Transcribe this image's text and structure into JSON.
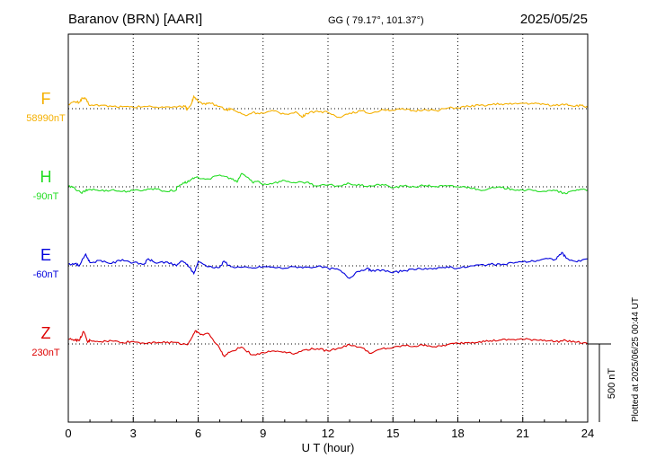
{
  "header": {
    "station": "Baranov (BRN)  [AARI]",
    "coords": "GG ( 79.17°, 101.37°)",
    "date": "2025/05/25"
  },
  "plotted_note": "Plotted at 2025/06/25 00:44 UT",
  "chart_data": {
    "type": "line",
    "xlabel": "U T (hour)",
    "xlim": [
      0,
      24
    ],
    "xticks": [
      0,
      3,
      6,
      9,
      12,
      15,
      18,
      21,
      24
    ],
    "scale_bar": {
      "label": "500 nT",
      "value": 500
    },
    "series": [
      {
        "name": "F",
        "baseline_label": "58990nT",
        "baseline": 58990,
        "color": "#f5b000",
        "points": [
          [
            0,
            29
          ],
          [
            0.3,
            43
          ],
          [
            0.5,
            40
          ],
          [
            0.65,
            68
          ],
          [
            0.8,
            62
          ],
          [
            1,
            20
          ],
          [
            1.5,
            22
          ],
          [
            2,
            15
          ],
          [
            2.5,
            12
          ],
          [
            3,
            8
          ],
          [
            3.5,
            15
          ],
          [
            4,
            10
          ],
          [
            4.5,
            12
          ],
          [
            5,
            9
          ],
          [
            5.4,
            14
          ],
          [
            5.5,
            -5
          ],
          [
            5.7,
            35
          ],
          [
            5.8,
            80
          ],
          [
            6,
            45
          ],
          [
            6.2,
            28
          ],
          [
            6.5,
            38
          ],
          [
            7,
            15
          ],
          [
            7.3,
            -10
          ],
          [
            7.5,
            0
          ],
          [
            7.8,
            -20
          ],
          [
            8.2,
            -45
          ],
          [
            8.5,
            -25
          ],
          [
            9,
            -30
          ],
          [
            9.5,
            -15
          ],
          [
            10,
            -35
          ],
          [
            10.5,
            -20
          ],
          [
            10.8,
            -55
          ],
          [
            11,
            -30
          ],
          [
            11.5,
            -15
          ],
          [
            12,
            -25
          ],
          [
            12.5,
            -55
          ],
          [
            13,
            -28
          ],
          [
            13.5,
            -15
          ],
          [
            14,
            -30
          ],
          [
            14.5,
            -5
          ],
          [
            15,
            -10
          ],
          [
            15.5,
            -5
          ],
          [
            16,
            -15
          ],
          [
            16.5,
            -5
          ],
          [
            17,
            -12
          ],
          [
            17.5,
            3
          ],
          [
            18,
            5
          ],
          [
            18.5,
            15
          ],
          [
            19,
            20
          ],
          [
            19.5,
            25
          ],
          [
            20,
            30
          ],
          [
            20.5,
            28
          ],
          [
            21,
            35
          ],
          [
            21.5,
            32
          ],
          [
            22,
            28
          ],
          [
            22.5,
            20
          ],
          [
            23,
            30
          ],
          [
            23.3,
            18
          ],
          [
            23.7,
            20
          ],
          [
            24,
            8
          ]
        ]
      },
      {
        "name": "H",
        "baseline_label": "-90nT",
        "baseline": -90,
        "color": "#22dd22",
        "points": [
          [
            0,
            4
          ],
          [
            0.3,
            -10
          ],
          [
            0.6,
            -40
          ],
          [
            0.8,
            -25
          ],
          [
            1,
            -15
          ],
          [
            1.5,
            -25
          ],
          [
            2,
            -20
          ],
          [
            2.5,
            -30
          ],
          [
            3,
            -25
          ],
          [
            3.5,
            -20
          ],
          [
            4,
            -10
          ],
          [
            4.5,
            -30
          ],
          [
            5,
            -20
          ],
          [
            5,
            -5
          ],
          [
            5.3,
            25
          ],
          [
            5.5,
            30
          ],
          [
            5.7,
            48
          ],
          [
            6,
            60
          ],
          [
            6.5,
            50
          ],
          [
            7,
            75
          ],
          [
            7.5,
            55
          ],
          [
            7.8,
            30
          ],
          [
            8,
            85
          ],
          [
            8.3,
            60
          ],
          [
            8.5,
            30
          ],
          [
            8.8,
            35
          ],
          [
            9,
            15
          ],
          [
            9.5,
            25
          ],
          [
            10,
            40
          ],
          [
            10.5,
            25
          ],
          [
            11,
            30
          ],
          [
            11.5,
            5
          ],
          [
            12,
            12
          ],
          [
            12.5,
            5
          ],
          [
            13,
            20
          ],
          [
            13.5,
            8
          ],
          [
            14,
            5
          ],
          [
            14.5,
            15
          ],
          [
            15,
            -5
          ],
          [
            15.5,
            5
          ],
          [
            16,
            0
          ],
          [
            16.5,
            8
          ],
          [
            17,
            2
          ],
          [
            17.5,
            5
          ],
          [
            18,
            0
          ],
          [
            18.5,
            -2
          ],
          [
            19,
            -20
          ],
          [
            19.5,
            -10
          ],
          [
            20,
            -5
          ],
          [
            20.5,
            -15
          ],
          [
            21,
            -20
          ],
          [
            21.5,
            -25
          ],
          [
            22,
            -28
          ],
          [
            22.5,
            -25
          ],
          [
            23,
            -45
          ],
          [
            23.3,
            -25
          ],
          [
            23.7,
            -15
          ],
          [
            24,
            -20
          ]
        ]
      },
      {
        "name": "E",
        "baseline_label": "-60nT",
        "baseline": -60,
        "color": "#0000dd",
        "points": [
          [
            0,
            10
          ],
          [
            0.3,
            15
          ],
          [
            0.5,
            0
          ],
          [
            0.8,
            75
          ],
          [
            1,
            20
          ],
          [
            1.5,
            35
          ],
          [
            2,
            15
          ],
          [
            2.5,
            40
          ],
          [
            3,
            20
          ],
          [
            3.5,
            10
          ],
          [
            3.7,
            45
          ],
          [
            4,
            20
          ],
          [
            4.5,
            25
          ],
          [
            5,
            0
          ],
          [
            5.2,
            30
          ],
          [
            5.5,
            10
          ],
          [
            5.8,
            -50
          ],
          [
            6,
            25
          ],
          [
            6.5,
            -5
          ],
          [
            7,
            -10
          ],
          [
            7.2,
            30
          ],
          [
            7.5,
            -5
          ],
          [
            8,
            -10
          ],
          [
            8.5,
            -15
          ],
          [
            9,
            -5
          ],
          [
            9.5,
            -10
          ],
          [
            10,
            -15
          ],
          [
            10.5,
            -5
          ],
          [
            11,
            -10
          ],
          [
            11.5,
            -5
          ],
          [
            12,
            -15
          ],
          [
            12.5,
            -25
          ],
          [
            13,
            -80
          ],
          [
            13.3,
            -40
          ],
          [
            13.8,
            -15
          ],
          [
            14,
            -35
          ],
          [
            14.5,
            -25
          ],
          [
            15,
            -45
          ],
          [
            15.5,
            -30
          ],
          [
            16,
            -25
          ],
          [
            16.5,
            -15
          ],
          [
            17,
            -20
          ],
          [
            17.5,
            -5
          ],
          [
            18,
            -15
          ],
          [
            18.5,
            -5
          ],
          [
            19,
            5
          ],
          [
            19.5,
            10
          ],
          [
            20,
            5
          ],
          [
            20.5,
            20
          ],
          [
            21,
            25
          ],
          [
            21.5,
            30
          ],
          [
            22,
            45
          ],
          [
            22.5,
            40
          ],
          [
            22.8,
            85
          ],
          [
            23,
            50
          ],
          [
            23.5,
            25
          ],
          [
            24,
            45
          ]
        ]
      },
      {
        "name": "Z",
        "baseline_label": "230nT",
        "baseline": 230,
        "color": "#dd0000",
        "points": [
          [
            0,
            30
          ],
          [
            0.3,
            28
          ],
          [
            0.5,
            20
          ],
          [
            0.7,
            80
          ],
          [
            0.9,
            10
          ],
          [
            1,
            25
          ],
          [
            1.5,
            15
          ],
          [
            2,
            20
          ],
          [
            2.5,
            10
          ],
          [
            3,
            15
          ],
          [
            3.5,
            5
          ],
          [
            4,
            12
          ],
          [
            4.5,
            8
          ],
          [
            5,
            10
          ],
          [
            5.5,
            -5
          ],
          [
            5.7,
            40
          ],
          [
            5.9,
            85
          ],
          [
            6.1,
            60
          ],
          [
            6.5,
            65
          ],
          [
            7,
            -30
          ],
          [
            7.2,
            -80
          ],
          [
            7.5,
            -50
          ],
          [
            8,
            -20
          ],
          [
            8.5,
            -70
          ],
          [
            9,
            -55
          ],
          [
            9.5,
            -45
          ],
          [
            10,
            -50
          ],
          [
            10.5,
            -60
          ],
          [
            11,
            -35
          ],
          [
            11.5,
            -30
          ],
          [
            12,
            -45
          ],
          [
            12.5,
            -25
          ],
          [
            13,
            -5
          ],
          [
            13.5,
            -20
          ],
          [
            14,
            -60
          ],
          [
            14.5,
            -30
          ],
          [
            15,
            -25
          ],
          [
            15.5,
            -10
          ],
          [
            16,
            -15
          ],
          [
            16.5,
            -5
          ],
          [
            17,
            -20
          ],
          [
            17.5,
            -5
          ],
          [
            18,
            5
          ],
          [
            18.5,
            10
          ],
          [
            19,
            15
          ],
          [
            19.5,
            20
          ],
          [
            20,
            25
          ],
          [
            20.5,
            28
          ],
          [
            21,
            30
          ],
          [
            21.5,
            28
          ],
          [
            22,
            25
          ],
          [
            22.5,
            15
          ],
          [
            23,
            22
          ],
          [
            23.5,
            12
          ],
          [
            24,
            0
          ]
        ]
      }
    ]
  }
}
